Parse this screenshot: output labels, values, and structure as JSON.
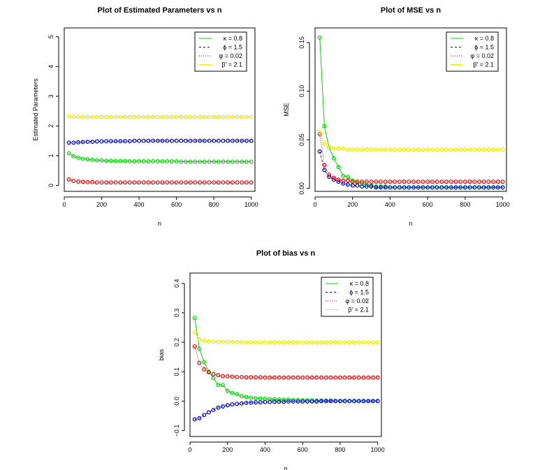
{
  "figure": {
    "description_colors": {
      "kappa": "#00dd00",
      "phi": "#0000cc",
      "varphi": "#ee0000",
      "beta": "#eeee00"
    }
  },
  "chart_data": [
    {
      "id": "params",
      "type": "scatter",
      "title": "Plot of Estimated Parameters vs n",
      "xlabel": "n",
      "ylabel": "Estimated Parameters",
      "xlim": [
        0,
        1020
      ],
      "ylim": [
        -0.2,
        5.3
      ],
      "xticks": [
        0,
        200,
        400,
        600,
        800,
        1000
      ],
      "yticks": [
        0,
        1,
        2,
        3,
        4,
        5
      ],
      "legend": [
        "κ = 0.8",
        "ϕ = 1.5",
        "φ = 0.02",
        "β' = 2.1"
      ],
      "legend_position": "top-right",
      "series": [
        {
          "name": "κ = 0.8",
          "color": "#00dd00",
          "values": [
            1.08,
            0.98,
            0.93,
            0.9,
            0.88,
            0.86,
            0.85,
            0.84,
            0.83,
            0.83,
            0.82,
            0.82,
            0.82,
            0.81,
            0.81,
            0.81,
            0.81,
            0.81,
            0.81,
            0.81,
            0.81,
            0.81,
            0.81,
            0.81,
            0.8,
            0.8,
            0.8,
            0.8,
            0.8,
            0.8,
            0.8,
            0.8,
            0.8,
            0.8,
            0.8,
            0.8,
            0.8,
            0.8,
            0.8,
            0.8
          ]
        },
        {
          "name": "ϕ = 1.5",
          "color": "#0000cc",
          "values": [
            1.44,
            1.44,
            1.45,
            1.46,
            1.47,
            1.47,
            1.48,
            1.48,
            1.49,
            1.49,
            1.49,
            1.49,
            1.49,
            1.49,
            1.5,
            1.5,
            1.5,
            1.5,
            1.5,
            1.5,
            1.5,
            1.5,
            1.5,
            1.5,
            1.5,
            1.5,
            1.5,
            1.5,
            1.5,
            1.5,
            1.5,
            1.5,
            1.5,
            1.5,
            1.5,
            1.5,
            1.5,
            1.5,
            1.5,
            1.5
          ]
        },
        {
          "name": "φ = 0.02",
          "color": "#ee0000",
          "values": [
            0.2,
            0.15,
            0.13,
            0.12,
            0.11,
            0.11,
            0.1,
            0.1,
            0.1,
            0.1,
            0.1,
            0.1,
            0.1,
            0.1,
            0.1,
            0.1,
            0.1,
            0.1,
            0.1,
            0.1,
            0.1,
            0.1,
            0.1,
            0.1,
            0.1,
            0.1,
            0.1,
            0.1,
            0.1,
            0.1,
            0.1,
            0.1,
            0.1,
            0.1,
            0.1,
            0.1,
            0.1,
            0.1,
            0.1,
            0.1
          ]
        },
        {
          "name": "β' = 2.1",
          "color": "#eeee00",
          "values": [
            2.33,
            2.31,
            2.31,
            2.3,
            2.3,
            2.3,
            2.3,
            2.3,
            2.3,
            2.3,
            2.3,
            2.3,
            2.3,
            2.3,
            2.3,
            2.3,
            2.3,
            2.3,
            2.3,
            2.3,
            2.3,
            2.3,
            2.3,
            2.3,
            2.3,
            2.3,
            2.3,
            2.3,
            2.3,
            2.3,
            2.3,
            2.3,
            2.3,
            2.3,
            2.3,
            2.3,
            2.3,
            2.3,
            2.3,
            2.3
          ]
        }
      ]
    },
    {
      "id": "mse",
      "type": "scatter",
      "title": "Plot of MSE vs n",
      "xlabel": "n",
      "ylabel": "MSE",
      "xlim": [
        0,
        1020
      ],
      "ylim": [
        -0.003,
        0.165
      ],
      "xticks": [
        0,
        200,
        400,
        600,
        800,
        1000
      ],
      "yticks": [
        0.0,
        0.05,
        0.1,
        0.15
      ],
      "ytick_labels": [
        "0.00",
        "0.05",
        "0.10",
        "0.15"
      ],
      "legend": [
        "κ = 0.8",
        "ϕ = 1.5",
        "φ = 0.02",
        "β' = 2.1"
      ],
      "legend_position": "top-right",
      "series": [
        {
          "name": "κ = 0.8",
          "color": "#00dd00",
          "values": [
            0.155,
            0.064,
            0.042,
            0.031,
            0.022,
            0.013,
            0.012,
            0.008,
            0.006,
            0.005,
            0.004,
            0.003,
            0.002,
            0.002,
            0.002,
            0.001,
            0.001,
            0.001,
            0.001,
            0.001,
            0.001,
            0.001,
            0.001,
            0.001,
            0.001,
            0.001,
            0.001,
            0.001,
            0.001,
            0.001,
            0.001,
            0.001,
            0.001,
            0.001,
            0.001,
            0.001,
            0.001,
            0.001,
            0.001,
            0.001
          ]
        },
        {
          "name": "ϕ = 1.5",
          "color": "#0000cc",
          "values": [
            0.038,
            0.019,
            0.012,
            0.009,
            0.007,
            0.005,
            0.004,
            0.003,
            0.003,
            0.002,
            0.002,
            0.002,
            0.001,
            0.001,
            0.001,
            0.001,
            0.001,
            0.001,
            0.001,
            0.001,
            0.001,
            0.001,
            0.001,
            0.001,
            0.001,
            0.001,
            0.001,
            0.001,
            0.001,
            0.001,
            0.001,
            0.001,
            0.001,
            0.001,
            0.001,
            0.001,
            0.001,
            0.001,
            0.001,
            0.001
          ]
        },
        {
          "name": "φ = 0.02",
          "color": "#ee0000",
          "values": [
            0.056,
            0.024,
            0.014,
            0.011,
            0.009,
            0.008,
            0.008,
            0.007,
            0.007,
            0.007,
            0.007,
            0.007,
            0.007,
            0.007,
            0.007,
            0.007,
            0.007,
            0.007,
            0.007,
            0.007,
            0.007,
            0.007,
            0.007,
            0.007,
            0.007,
            0.007,
            0.007,
            0.007,
            0.007,
            0.007,
            0.007,
            0.007,
            0.007,
            0.007,
            0.007,
            0.007,
            0.007,
            0.007,
            0.007,
            0.007
          ]
        },
        {
          "name": "β' = 2.1",
          "color": "#eeee00",
          "values": [
            0.058,
            0.046,
            0.042,
            0.041,
            0.041,
            0.041,
            0.04,
            0.04,
            0.04,
            0.04,
            0.04,
            0.04,
            0.04,
            0.04,
            0.04,
            0.04,
            0.04,
            0.04,
            0.04,
            0.04,
            0.04,
            0.04,
            0.04,
            0.04,
            0.04,
            0.04,
            0.04,
            0.04,
            0.04,
            0.04,
            0.04,
            0.04,
            0.04,
            0.04,
            0.04,
            0.04,
            0.04,
            0.04,
            0.04,
            0.04
          ]
        }
      ]
    },
    {
      "id": "bias",
      "type": "scatter",
      "title": "Plot of bias vs n",
      "xlabel": "n",
      "ylabel": "bias",
      "xlim": [
        0,
        1020
      ],
      "ylim": [
        -0.12,
        0.435
      ],
      "xticks": [
        0,
        200,
        400,
        600,
        800,
        1000
      ],
      "yticks": [
        -0.1,
        0.0,
        0.1,
        0.2,
        0.3,
        0.4
      ],
      "ytick_labels": [
        "−0.1",
        "0.0",
        "0.1",
        "0.2",
        "0.3",
        "0.4"
      ],
      "legend": [
        "κ = 0.8",
        "ϕ = 1.5",
        "φ = 0.02",
        "β' = 2.1"
      ],
      "legend_position": "top-right",
      "series": [
        {
          "name": "κ = 0.8",
          "color": "#00dd00",
          "values": [
            0.283,
            0.178,
            0.133,
            0.1,
            0.078,
            0.055,
            0.055,
            0.035,
            0.028,
            0.024,
            0.017,
            0.014,
            0.012,
            0.01,
            0.009,
            0.008,
            0.007,
            0.006,
            0.006,
            0.005,
            0.005,
            0.004,
            0.004,
            0.003,
            0.003,
            0.003,
            0.002,
            0.002,
            0.002,
            0.002,
            0.001,
            0.001,
            0.001,
            0.001,
            0.001,
            0.001,
            0.001,
            0.001,
            0.001,
            0.001
          ]
        },
        {
          "name": "ϕ = 1.5",
          "color": "#0000cc",
          "values": [
            -0.062,
            -0.058,
            -0.047,
            -0.038,
            -0.03,
            -0.022,
            -0.018,
            -0.014,
            -0.011,
            -0.009,
            -0.008,
            -0.006,
            -0.005,
            -0.004,
            -0.004,
            -0.003,
            -0.003,
            -0.002,
            -0.002,
            -0.002,
            -0.001,
            -0.001,
            -0.001,
            -0.001,
            -0.001,
            -0.001,
            -0.001,
            0.0,
            0.0,
            0.0,
            0.0,
            0.0,
            0.0,
            0.0,
            0.0,
            0.0,
            0.0,
            0.0,
            0.0,
            0.0
          ]
        },
        {
          "name": "φ = 0.02",
          "color": "#ee0000",
          "values": [
            0.186,
            0.13,
            0.108,
            0.098,
            0.092,
            0.088,
            0.085,
            0.084,
            0.083,
            0.082,
            0.082,
            0.081,
            0.081,
            0.081,
            0.081,
            0.08,
            0.08,
            0.08,
            0.08,
            0.08,
            0.08,
            0.08,
            0.08,
            0.08,
            0.08,
            0.08,
            0.08,
            0.08,
            0.08,
            0.08,
            0.08,
            0.08,
            0.08,
            0.08,
            0.08,
            0.08,
            0.08,
            0.08,
            0.08,
            0.08
          ]
        },
        {
          "name": "β' = 2.1",
          "color": "#eeee00",
          "values": [
            0.235,
            0.21,
            0.205,
            0.203,
            0.202,
            0.202,
            0.201,
            0.201,
            0.201,
            0.201,
            0.2,
            0.2,
            0.2,
            0.2,
            0.2,
            0.2,
            0.2,
            0.2,
            0.2,
            0.2,
            0.2,
            0.2,
            0.2,
            0.2,
            0.2,
            0.2,
            0.2,
            0.2,
            0.2,
            0.2,
            0.2,
            0.2,
            0.2,
            0.2,
            0.2,
            0.2,
            0.2,
            0.2,
            0.2,
            0.2
          ]
        }
      ]
    }
  ]
}
